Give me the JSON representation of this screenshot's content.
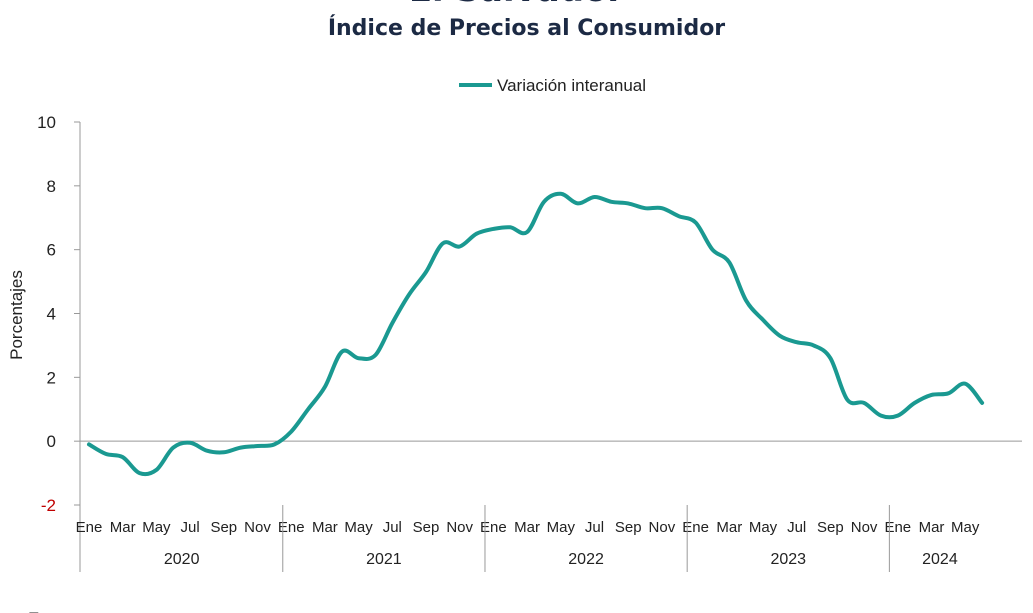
{
  "title": "El Salvador",
  "subtitle": "Índice de Precios al Consumidor",
  "chart_data": {
    "type": "line",
    "ylabel": "Porcentajes",
    "ylim": [
      -2,
      10
    ],
    "yticks": [
      "-2",
      "0",
      "2",
      "4",
      "6",
      "8",
      "10"
    ],
    "legend_position": "top-center",
    "grid": false,
    "month_labels": [
      "Ene",
      "Mar",
      "May",
      "Jul",
      "Sep",
      "Nov"
    ],
    "years": [
      "2020",
      "2021",
      "2022",
      "2023",
      "2024"
    ],
    "series": [
      {
        "name": "Variación interanual",
        "color": "#1a9991",
        "values": [
          -0.1,
          -0.4,
          -0.5,
          -1.0,
          -0.9,
          -0.2,
          -0.05,
          -0.3,
          -0.35,
          -0.2,
          -0.15,
          -0.1,
          0.3,
          1.0,
          1.7,
          2.8,
          2.6,
          2.7,
          3.7,
          4.6,
          5.3,
          6.2,
          6.1,
          6.5,
          6.65,
          6.7,
          6.55,
          7.5,
          7.75,
          7.45,
          7.65,
          7.5,
          7.45,
          7.3,
          7.3,
          7.05,
          6.85,
          6.0,
          5.6,
          4.4,
          3.8,
          3.3,
          3.1,
          3.0,
          2.6,
          1.3,
          1.2,
          0.8,
          0.8,
          1.2,
          1.45,
          1.5,
          1.8,
          1.2
        ]
      }
    ],
    "annotations": [
      "E"
    ]
  }
}
